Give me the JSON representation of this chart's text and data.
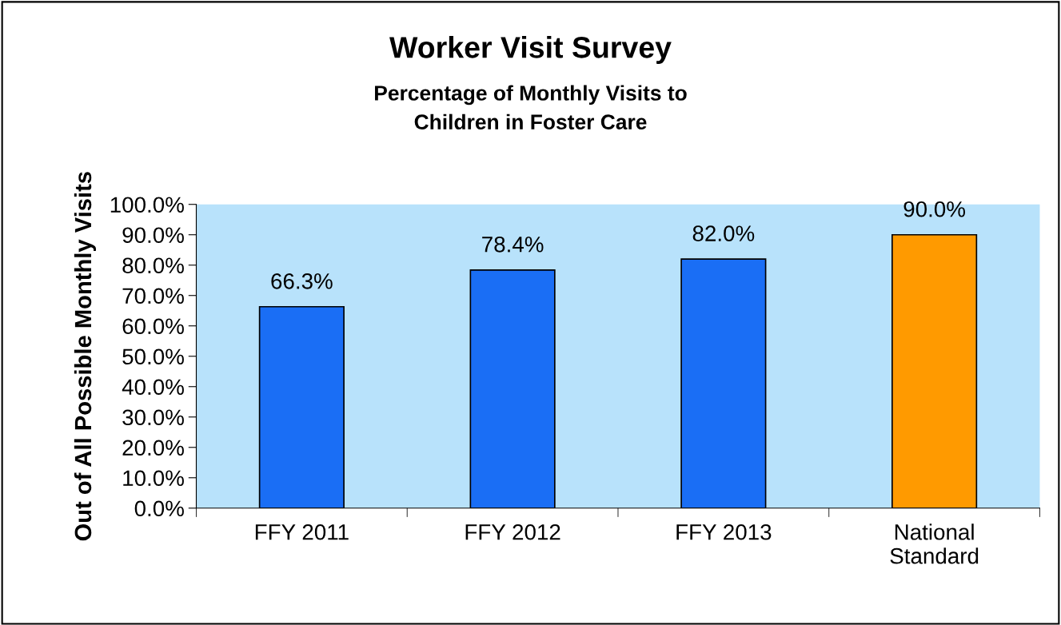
{
  "chart_data": {
    "type": "bar",
    "title": "Worker Visit Survey",
    "subtitle": "Percentage of Monthly Visits to\nChildren in Foster Care",
    "ylabel": "Out of All Possible Monthly Visits",
    "categories": [
      "FFY 2011",
      "FFY 2012",
      "FFY 2013",
      "National\nStandard"
    ],
    "values": [
      66.3,
      78.4,
      82.0,
      90.0
    ],
    "colors": [
      "#1a6ef5",
      "#1a6ef5",
      "#1a6ef5",
      "#ff9a00"
    ],
    "value_labels": [
      "66.3%",
      "78.4%",
      "82.0%",
      "90.0%"
    ],
    "ylim": [
      0,
      100
    ],
    "yticks": [
      {
        "value": 0,
        "label": "0.0%"
      },
      {
        "value": 10,
        "label": "10.0%"
      },
      {
        "value": 20,
        "label": "20.0%"
      },
      {
        "value": 30,
        "label": "30.0%"
      },
      {
        "value": 40,
        "label": "40.0%"
      },
      {
        "value": 50,
        "label": "50.0%"
      },
      {
        "value": 60,
        "label": "60.0%"
      },
      {
        "value": 70,
        "label": "70.0%"
      },
      {
        "value": 80,
        "label": "80.0%"
      },
      {
        "value": 90,
        "label": "90.0%"
      },
      {
        "value": 100,
        "label": "100.0%"
      }
    ],
    "grid": false,
    "legend": false
  }
}
